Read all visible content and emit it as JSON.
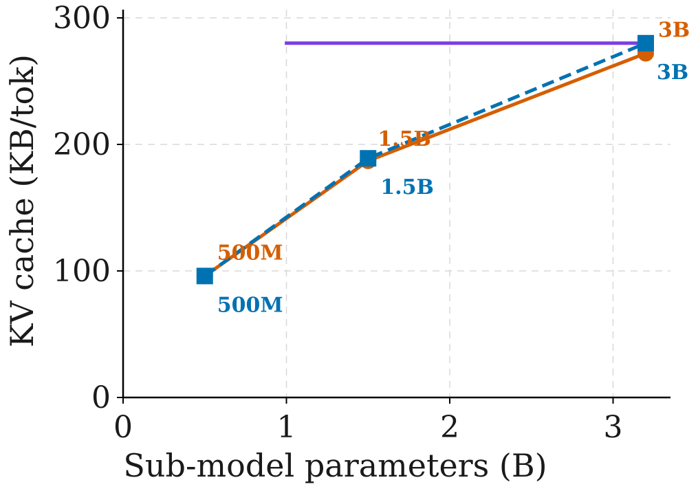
{
  "chart_data": {
    "type": "line",
    "title": "",
    "xlabel": "Sub-model parameters (B)",
    "ylabel": "KV cache (KB/tok)",
    "xlim": [
      0,
      3.35
    ],
    "ylim": [
      0,
      300
    ],
    "xticks": [
      0,
      1,
      2,
      3
    ],
    "yticks": [
      0,
      100,
      200,
      300
    ],
    "grid": true,
    "series": [
      {
        "color": "#d55e00",
        "marker": "circle",
        "line_style": "solid",
        "x": [
          0.5,
          1.5,
          3.2
        ],
        "y": [
          96,
          187,
          272
        ],
        "labels": [
          "500M",
          "1.5B",
          "3B"
        ]
      },
      {
        "color": "#0072b2",
        "marker": "square",
        "line_style": "dashed",
        "x": [
          0.5,
          1.5,
          3.2
        ],
        "y": [
          96,
          189,
          280
        ],
        "labels": [
          "500M",
          "1.5B",
          "3B"
        ]
      },
      {
        "color": "#7b3fe4",
        "marker": "none",
        "line_style": "solid",
        "x": [
          0.99,
          3.2
        ],
        "y": [
          280,
          280
        ]
      }
    ]
  }
}
